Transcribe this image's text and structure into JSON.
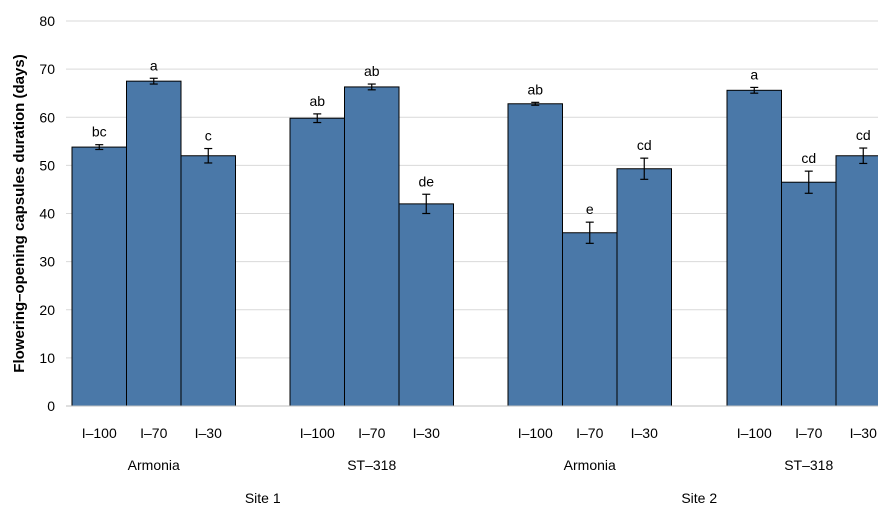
{
  "chart_data": {
    "type": "bar",
    "ylabel": "Flowering–opening capsules duration (days)",
    "ylim": [
      0,
      80
    ],
    "yticks": [
      0,
      10,
      20,
      30,
      40,
      50,
      60,
      70,
      80
    ],
    "grid": true,
    "bar_color": "#4a78a8",
    "sites": [
      "Site 1",
      "Site 2"
    ],
    "groups": [
      {
        "site": "Site 1",
        "cultivar": "Armonia",
        "treatments": [
          "I–100",
          "I–70",
          "I–30"
        ],
        "values": [
          53.8,
          67.5,
          52.0
        ],
        "errors": [
          0.5,
          0.6,
          1.5
        ],
        "letters": [
          "bc",
          "a",
          "c"
        ]
      },
      {
        "site": "Site 1",
        "cultivar": "ST–318",
        "treatments": [
          "I–100",
          "I–70",
          "I–30"
        ],
        "values": [
          59.8,
          66.3,
          42.0
        ],
        "errors": [
          0.9,
          0.6,
          2.0
        ],
        "letters": [
          "ab",
          "ab",
          "de"
        ]
      },
      {
        "site": "Site 2",
        "cultivar": "Armonia",
        "treatments": [
          "I–100",
          "I–70",
          "I–30"
        ],
        "values": [
          62.8,
          36.0,
          49.3
        ],
        "errors": [
          0.3,
          2.2,
          2.2
        ],
        "letters": [
          "ab",
          "e",
          "cd"
        ]
      },
      {
        "site": "Site 2",
        "cultivar": "ST–318",
        "treatments": [
          "I–100",
          "I–70",
          "I–30"
        ],
        "values": [
          65.6,
          46.5,
          52.0
        ],
        "errors": [
          0.6,
          2.3,
          1.6
        ],
        "letters": [
          "a",
          "cd",
          "cd"
        ]
      }
    ]
  }
}
